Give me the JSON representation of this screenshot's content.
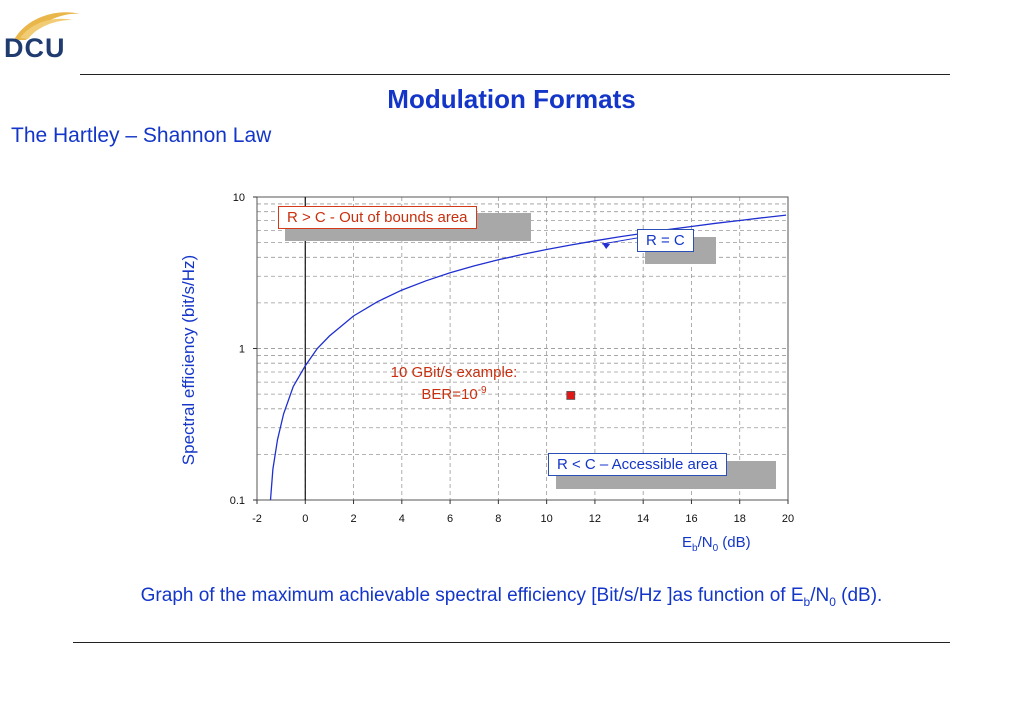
{
  "logo": {
    "text": "DCU"
  },
  "page": {
    "title": "Modulation Formats",
    "subtitle": "The Hartley – Shannon Law",
    "caption_prefix": "Graph of the maximum achievable spectral efficiency [Bit/s/Hz ]as function of E",
    "caption_sub1": "b",
    "caption_mid": "/N",
    "caption_sub2": "0",
    "caption_suffix": " (dB)."
  },
  "annotations": {
    "out_of_bounds": "R > C -  Out of bounds area",
    "r_equals_c": "R = C",
    "accessible": "R < C – Accessible area",
    "example_line1": "10 GBit/s example:",
    "example_line2": "BER=10",
    "example_exp": "-9"
  },
  "colors": {
    "curve": "#1f2fd0",
    "point": "#e01818",
    "text_blue": "#1436c8",
    "text_red": "#c8300f"
  },
  "chart_data": {
    "type": "line",
    "xlabel_main": "E",
    "xlabel_sub1": "b",
    "xlabel_mid": "/N",
    "xlabel_sub2": "0",
    "xlabel_suffix": " (dB)",
    "ylabel": "Spectral efficiency (bit/s/Hz)",
    "xlim": [
      -2,
      20
    ],
    "ylim": [
      0.1,
      10
    ],
    "yscale": "log",
    "xticks": [
      -2,
      0,
      2,
      4,
      6,
      8,
      10,
      12,
      14,
      16,
      18,
      20
    ],
    "yticks": [
      0.1,
      1,
      10
    ],
    "ytick_labels": [
      "0.1",
      "1",
      "10"
    ],
    "grid": true,
    "series": [
      {
        "x": [
          -1.44,
          -1.34,
          -1.15,
          -0.9,
          -0.5,
          0,
          0.5,
          1,
          2,
          3,
          4,
          5,
          6,
          7,
          8,
          9,
          10,
          11,
          12,
          13,
          14,
          15,
          16,
          17,
          18,
          19,
          19.92
        ],
        "y": [
          0.1,
          0.16,
          0.25,
          0.37,
          0.56,
          0.77,
          1.0,
          1.21,
          1.64,
          2.04,
          2.43,
          2.8,
          3.16,
          3.51,
          3.85,
          4.18,
          4.5,
          4.82,
          5.14,
          5.45,
          5.76,
          6.08,
          6.39,
          6.7,
          7.0,
          7.31,
          7.6
        ]
      }
    ],
    "points": [
      {
        "x": 11,
        "y": 0.49
      }
    ]
  }
}
